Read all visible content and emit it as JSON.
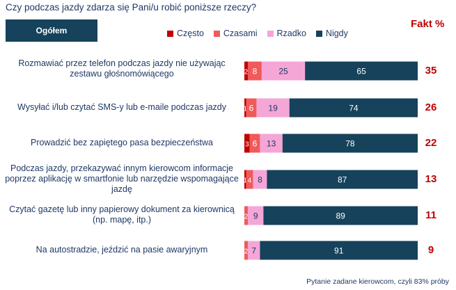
{
  "question": "Czy podczas jazdy zdarza się Pani/u robić poniższe rzeczy?",
  "group_label": "Ogółem",
  "fakt_header": "Fakt %",
  "footnote": "Pytanie zadane kierowcom, czyli 83% próby",
  "colors": {
    "czesto": "#c00000",
    "czasami": "#f05a5a",
    "rzadko": "#f4a6d7",
    "nigdy": "#16425b",
    "fakt": "#c00000"
  },
  "legend": [
    "Często",
    "Czasami",
    "Rzadko",
    "Nigdy"
  ],
  "chart_data": {
    "type": "bar",
    "stacked": true,
    "orientation": "horizontal",
    "title": "",
    "xlabel": "",
    "ylabel": "",
    "xlim": [
      0,
      100
    ],
    "series_names": [
      "Często",
      "Czasami",
      "Rzadko",
      "Nigdy"
    ],
    "rows": [
      {
        "label": "Rozmawiać przez telefon podczas jazdy nie używając zestawu głośnomówiącego",
        "values": [
          2,
          8,
          25,
          65
        ],
        "fakt": "35"
      },
      {
        "label": "Wysyłać i/lub czytać SMS-y lub e-maile podczas jazdy",
        "values": [
          1,
          6,
          19,
          74
        ],
        "fakt": "26"
      },
      {
        "label": "Prowadzić bez zapiętego pasa bezpieczeństwa",
        "values": [
          3,
          6,
          13,
          78
        ],
        "fakt": "22"
      },
      {
        "label": "Podczas jazdy, przekazywać innym kierowcom informacje poprzez aplikację w smartfonie lub narzędzie wspomagające jazdę",
        "values": [
          1,
          4,
          8,
          87
        ],
        "fakt": "13"
      },
      {
        "label": "Czytać gazetę lub inny papierowy dokument za kierownicą (np. mapę, itp.)",
        "values": [
          0,
          2,
          9,
          89
        ],
        "fakt": "11"
      },
      {
        "label": "Na autostradzie, jeździć na pasie awaryjnym",
        "values": [
          0,
          2,
          7,
          91
        ],
        "fakt": "9"
      }
    ]
  }
}
